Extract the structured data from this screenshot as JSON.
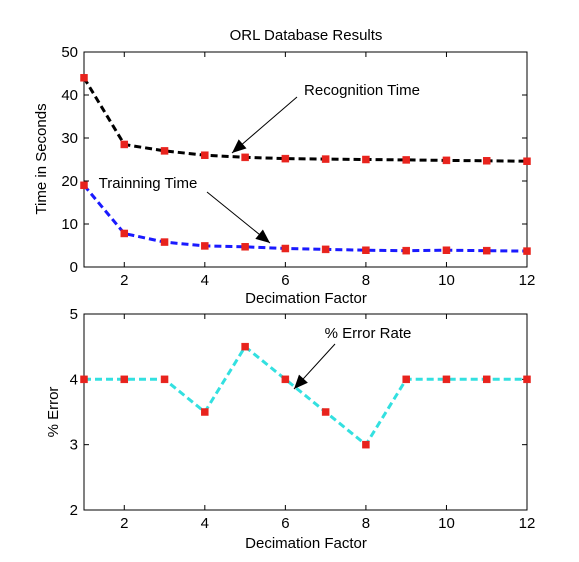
{
  "chart_data": [
    {
      "type": "line",
      "title": "ORL Database Results",
      "xlabel": "Decimation Factor",
      "ylabel": "Time in Seconds",
      "xlim": [
        1,
        12
      ],
      "ylim": [
        0,
        50
      ],
      "xticks": [
        2,
        4,
        6,
        8,
        10,
        12
      ],
      "yticks": [
        0,
        10,
        20,
        30,
        40,
        50
      ],
      "x": [
        1,
        2,
        3,
        4,
        5,
        6,
        7,
        8,
        9,
        10,
        11,
        12
      ],
      "series": [
        {
          "name": "Recognition Time",
          "color": "#000000",
          "marker_color": "#e8231d",
          "values": [
            44,
            28.5,
            27,
            26,
            25.5,
            25.2,
            25.1,
            25,
            24.9,
            24.8,
            24.7,
            24.6
          ]
        },
        {
          "name": "Trainning Time",
          "color": "#1a1aff",
          "marker_color": "#e8231d",
          "values": [
            19,
            7.8,
            5.8,
            4.9,
            4.7,
            4.3,
            4.1,
            3.9,
            3.8,
            3.9,
            3.8,
            3.7
          ]
        }
      ],
      "annotations": [
        {
          "text": "Recognition Time",
          "points_to": [
            4.7,
            25.8
          ]
        },
        {
          "text": "Trainning Time",
          "points_to": [
            5.7,
            4.5
          ]
        }
      ],
      "grid": false
    },
    {
      "type": "line",
      "title": "",
      "xlabel": "Decimation Factor",
      "ylabel": "% Error",
      "xlim": [
        1,
        12
      ],
      "ylim": [
        2,
        5
      ],
      "xticks": [
        2,
        4,
        6,
        8,
        10,
        12
      ],
      "yticks": [
        2,
        3,
        4,
        5
      ],
      "x": [
        1,
        2,
        3,
        4,
        5,
        6,
        7,
        8,
        9,
        10,
        11,
        12
      ],
      "series": [
        {
          "name": "% Error Rate",
          "color": "#33e0e0",
          "marker_color": "#e8231d",
          "values": [
            4,
            4,
            4,
            3.5,
            4.5,
            4,
            3.5,
            3,
            4,
            4,
            4,
            4
          ]
        }
      ],
      "annotations": [
        {
          "text": "% Error Rate",
          "points_to": [
            6.2,
            3.87
          ]
        }
      ],
      "grid": false
    }
  ]
}
